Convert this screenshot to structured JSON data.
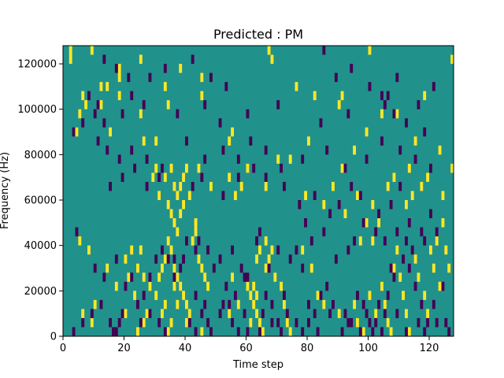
{
  "chart_data": {
    "type": "heatmap",
    "title": "Predicted : PM",
    "xlabel": "Time step",
    "ylabel": "Frequency (Hz)",
    "xlim": [
      0,
      128
    ],
    "ylim": [
      0,
      128000
    ],
    "x_ticks": [
      0,
      20,
      40,
      60,
      80,
      100,
      120
    ],
    "y_ticks": [
      0,
      20000,
      40000,
      60000,
      80000,
      100000,
      120000
    ],
    "x_tick_labels": [
      "0",
      "20",
      "40",
      "60",
      "80",
      "100",
      "120"
    ],
    "y_tick_labels": [
      "0",
      "20000",
      "40000",
      "60000",
      "80000",
      "100000",
      "120000"
    ],
    "background_value": 0,
    "colors": {
      "low": "#440154",
      "mid": "#21918c",
      "high": "#fde725"
    },
    "cell_width_steps": 1,
    "cell_height_hz": 4000,
    "high_cells": [
      [
        2,
        124000
      ],
      [
        2,
        120000
      ],
      [
        9,
        124000
      ],
      [
        25,
        120000
      ],
      [
        67,
        124000
      ],
      [
        68,
        120000
      ],
      [
        100,
        124000
      ],
      [
        127,
        120000
      ],
      [
        18,
        116000
      ],
      [
        18,
        112000
      ],
      [
        14,
        108000
      ],
      [
        18,
        104000
      ],
      [
        25,
        96000
      ],
      [
        12,
        108000
      ],
      [
        34,
        100000
      ],
      [
        38,
        116000
      ],
      [
        45,
        112000
      ],
      [
        45,
        104000
      ],
      [
        33,
        108000
      ],
      [
        6,
        104000
      ],
      [
        76,
        108000
      ],
      [
        82,
        104000
      ],
      [
        90,
        100000
      ],
      [
        91,
        104000
      ],
      [
        104,
        96000
      ],
      [
        109,
        96000
      ],
      [
        118,
        104000
      ],
      [
        4,
        88000
      ],
      [
        5,
        96000
      ],
      [
        7,
        100000
      ],
      [
        12,
        100000
      ],
      [
        15,
        88000
      ],
      [
        26,
        84000
      ],
      [
        30,
        84000
      ],
      [
        54,
        84000
      ],
      [
        55,
        88000
      ],
      [
        74,
        76000
      ],
      [
        80,
        84000
      ],
      [
        91,
        72000
      ],
      [
        95,
        80000
      ],
      [
        99,
        88000
      ],
      [
        108,
        68000
      ],
      [
        113,
        72000
      ],
      [
        115,
        84000
      ],
      [
        123,
        80000
      ],
      [
        127,
        72000
      ],
      [
        29,
        68000
      ],
      [
        30,
        72000
      ],
      [
        31,
        60000
      ],
      [
        33,
        68000
      ],
      [
        35,
        72000
      ],
      [
        36,
        64000
      ],
      [
        37,
        60000
      ],
      [
        38,
        64000
      ],
      [
        39,
        68000
      ],
      [
        40,
        72000
      ],
      [
        34,
        56000
      ],
      [
        35,
        52000
      ],
      [
        36,
        48000
      ],
      [
        37,
        44000
      ],
      [
        38,
        52000
      ],
      [
        39,
        56000
      ],
      [
        41,
        60000
      ],
      [
        43,
        48000
      ],
      [
        44,
        72000
      ],
      [
        48,
        64000
      ],
      [
        54,
        68000
      ],
      [
        56,
        60000
      ],
      [
        58,
        64000
      ],
      [
        60,
        72000
      ],
      [
        66,
        64000
      ],
      [
        70,
        76000
      ],
      [
        79,
        60000
      ],
      [
        85,
        56000
      ],
      [
        88,
        64000
      ],
      [
        92,
        52000
      ],
      [
        96,
        60000
      ],
      [
        101,
        56000
      ],
      [
        103,
        48000
      ],
      [
        106,
        64000
      ],
      [
        112,
        56000
      ],
      [
        114,
        60000
      ],
      [
        117,
        64000
      ],
      [
        119,
        68000
      ],
      [
        124,
        60000
      ],
      [
        5,
        40000
      ],
      [
        8,
        36000
      ],
      [
        14,
        28000
      ],
      [
        20,
        32000
      ],
      [
        22,
        36000
      ],
      [
        24,
        28000
      ],
      [
        25,
        36000
      ],
      [
        26,
        24000
      ],
      [
        28,
        20000
      ],
      [
        30,
        16000
      ],
      [
        31,
        24000
      ],
      [
        32,
        28000
      ],
      [
        33,
        32000
      ],
      [
        34,
        40000
      ],
      [
        35,
        36000
      ],
      [
        36,
        28000
      ],
      [
        37,
        24000
      ],
      [
        38,
        20000
      ],
      [
        39,
        16000
      ],
      [
        40,
        12000
      ],
      [
        41,
        8000
      ],
      [
        42,
        40000
      ],
      [
        43,
        44000
      ],
      [
        44,
        32000
      ],
      [
        45,
        28000
      ],
      [
        46,
        24000
      ],
      [
        47,
        20000
      ],
      [
        33,
        12000
      ],
      [
        32,
        8000
      ],
      [
        35,
        4000
      ],
      [
        34,
        0
      ],
      [
        36,
        20000
      ],
      [
        37,
        12000
      ],
      [
        40,
        4000
      ],
      [
        60,
        20000
      ],
      [
        61,
        16000
      ],
      [
        62,
        12000
      ],
      [
        63,
        8000
      ],
      [
        64,
        4000
      ],
      [
        65,
        0
      ],
      [
        61,
        4000
      ],
      [
        63,
        16000
      ],
      [
        62,
        20000
      ],
      [
        66,
        28000
      ],
      [
        67,
        32000
      ],
      [
        68,
        36000
      ],
      [
        69,
        24000
      ],
      [
        71,
        20000
      ],
      [
        72,
        12000
      ],
      [
        73,
        4000
      ],
      [
        74,
        0
      ],
      [
        78,
        36000
      ],
      [
        81,
        28000
      ],
      [
        83,
        16000
      ],
      [
        85,
        12000
      ],
      [
        90,
        8000
      ],
      [
        95,
        12000
      ],
      [
        96,
        4000
      ],
      [
        98,
        0
      ],
      [
        100,
        16000
      ],
      [
        102,
        8000
      ],
      [
        104,
        20000
      ],
      [
        105,
        12000
      ],
      [
        106,
        4000
      ],
      [
        107,
        0
      ],
      [
        108,
        28000
      ],
      [
        109,
        36000
      ],
      [
        110,
        24000
      ],
      [
        111,
        16000
      ],
      [
        112,
        8000
      ],
      [
        113,
        0
      ],
      [
        115,
        32000
      ],
      [
        116,
        24000
      ],
      [
        118,
        16000
      ],
      [
        119,
        8000
      ],
      [
        121,
        28000
      ],
      [
        123,
        20000
      ],
      [
        125,
        36000
      ],
      [
        126,
        28000
      ],
      [
        24,
        0
      ],
      [
        26,
        4000
      ],
      [
        27,
        8000
      ],
      [
        23,
        16000
      ],
      [
        21,
        24000
      ],
      [
        17,
        20000
      ],
      [
        10,
        12000
      ],
      [
        9,
        4000
      ],
      [
        6,
        8000
      ],
      [
        20,
        8000
      ],
      [
        45,
        0
      ],
      [
        54,
        8000
      ],
      [
        57,
        12000
      ],
      [
        55,
        24000
      ],
      [
        63,
        32000
      ],
      [
        64,
        36000
      ],
      [
        66,
        40000
      ],
      [
        97,
        40000
      ],
      [
        99,
        48000
      ],
      [
        101,
        40000
      ],
      [
        120,
        36000
      ],
      [
        122,
        40000
      ],
      [
        124,
        48000
      ]
    ],
    "low_cells": [
      [
        13,
        120000
      ],
      [
        17,
        116000
      ],
      [
        21,
        112000
      ],
      [
        28,
        112000
      ],
      [
        33,
        116000
      ],
      [
        42,
        120000
      ],
      [
        48,
        112000
      ],
      [
        53,
        108000
      ],
      [
        85,
        124000
      ],
      [
        89,
        112000
      ],
      [
        94,
        116000
      ],
      [
        100,
        108000
      ],
      [
        106,
        104000
      ],
      [
        109,
        112000
      ],
      [
        116,
        100000
      ],
      [
        121,
        108000
      ],
      [
        8,
        104000
      ],
      [
        11,
        100000
      ],
      [
        10,
        96000
      ],
      [
        6,
        92000
      ],
      [
        3,
        88000
      ],
      [
        13,
        92000
      ],
      [
        19,
        96000
      ],
      [
        22,
        104000
      ],
      [
        26,
        100000
      ],
      [
        37,
        96000
      ],
      [
        46,
        100000
      ],
      [
        51,
        92000
      ],
      [
        60,
        96000
      ],
      [
        70,
        100000
      ],
      [
        84,
        92000
      ],
      [
        93,
        96000
      ],
      [
        104,
        104000
      ],
      [
        105,
        100000
      ],
      [
        108,
        96000
      ],
      [
        112,
        92000
      ],
      [
        118,
        88000
      ],
      [
        11,
        84000
      ],
      [
        14,
        80000
      ],
      [
        18,
        76000
      ],
      [
        22,
        80000
      ],
      [
        27,
        76000
      ],
      [
        32,
        72000
      ],
      [
        40,
        84000
      ],
      [
        46,
        76000
      ],
      [
        52,
        80000
      ],
      [
        57,
        76000
      ],
      [
        61,
        84000
      ],
      [
        66,
        80000
      ],
      [
        71,
        72000
      ],
      [
        78,
        76000
      ],
      [
        86,
        80000
      ],
      [
        92,
        72000
      ],
      [
        99,
        76000
      ],
      [
        104,
        84000
      ],
      [
        110,
        80000
      ],
      [
        115,
        76000
      ],
      [
        120,
        72000
      ],
      [
        15,
        64000
      ],
      [
        19,
        68000
      ],
      [
        23,
        72000
      ],
      [
        27,
        64000
      ],
      [
        31,
        68000
      ],
      [
        42,
        64000
      ],
      [
        45,
        68000
      ],
      [
        52,
        60000
      ],
      [
        57,
        68000
      ],
      [
        62,
        72000
      ],
      [
        66,
        68000
      ],
      [
        72,
        64000
      ],
      [
        77,
        56000
      ],
      [
        82,
        60000
      ],
      [
        87,
        52000
      ],
      [
        90,
        56000
      ],
      [
        94,
        64000
      ],
      [
        97,
        60000
      ],
      [
        103,
        52000
      ],
      [
        107,
        56000
      ],
      [
        110,
        64000
      ],
      [
        113,
        48000
      ],
      [
        117,
        44000
      ],
      [
        120,
        52000
      ],
      [
        4,
        44000
      ],
      [
        10,
        28000
      ],
      [
        13,
        24000
      ],
      [
        17,
        32000
      ],
      [
        20,
        20000
      ],
      [
        22,
        24000
      ],
      [
        24,
        12000
      ],
      [
        26,
        16000
      ],
      [
        28,
        24000
      ],
      [
        30,
        32000
      ],
      [
        32,
        36000
      ],
      [
        34,
        32000
      ],
      [
        36,
        24000
      ],
      [
        38,
        28000
      ],
      [
        39,
        32000
      ],
      [
        43,
        16000
      ],
      [
        45,
        8000
      ],
      [
        46,
        12000
      ],
      [
        47,
        36000
      ],
      [
        49,
        28000
      ],
      [
        51,
        32000
      ],
      [
        53,
        20000
      ],
      [
        54,
        12000
      ],
      [
        56,
        16000
      ],
      [
        58,
        28000
      ],
      [
        60,
        24000
      ],
      [
        63,
        40000
      ],
      [
        64,
        44000
      ],
      [
        66,
        16000
      ],
      [
        68,
        12000
      ],
      [
        70,
        4000
      ],
      [
        72,
        16000
      ],
      [
        74,
        32000
      ],
      [
        76,
        36000
      ],
      [
        78,
        28000
      ],
      [
        80,
        12000
      ],
      [
        82,
        8000
      ],
      [
        84,
        16000
      ],
      [
        86,
        20000
      ],
      [
        88,
        12000
      ],
      [
        92,
        8000
      ],
      [
        94,
        4000
      ],
      [
        96,
        16000
      ],
      [
        98,
        12000
      ],
      [
        99,
        8000
      ],
      [
        100,
        4000
      ],
      [
        101,
        0
      ],
      [
        103,
        12000
      ],
      [
        105,
        8000
      ],
      [
        106,
        16000
      ],
      [
        107,
        28000
      ],
      [
        108,
        24000
      ],
      [
        111,
        32000
      ],
      [
        113,
        28000
      ],
      [
        115,
        20000
      ],
      [
        117,
        12000
      ],
      [
        119,
        4000
      ],
      [
        121,
        12000
      ],
      [
        124,
        20000
      ],
      [
        125,
        4000
      ],
      [
        3,
        0
      ],
      [
        6,
        4000
      ],
      [
        9,
        8000
      ],
      [
        12,
        12000
      ],
      [
        15,
        4000
      ],
      [
        16,
        0
      ],
      [
        17,
        0
      ],
      [
        18,
        4000
      ],
      [
        19,
        8000
      ],
      [
        25,
        4000
      ],
      [
        28,
        8000
      ],
      [
        31,
        4000
      ],
      [
        33,
        0
      ],
      [
        41,
        4000
      ],
      [
        43,
        0
      ],
      [
        47,
        4000
      ],
      [
        48,
        0
      ],
      [
        51,
        8000
      ],
      [
        52,
        12000
      ],
      [
        55,
        4000
      ],
      [
        57,
        0
      ],
      [
        59,
        8000
      ],
      [
        60,
        0
      ],
      [
        64,
        0
      ],
      [
        65,
        8000
      ],
      [
        68,
        4000
      ],
      [
        71,
        0
      ],
      [
        73,
        8000
      ],
      [
        76,
        4000
      ],
      [
        78,
        0
      ],
      [
        80,
        4000
      ],
      [
        83,
        0
      ],
      [
        87,
        8000
      ],
      [
        91,
        0
      ],
      [
        93,
        4000
      ],
      [
        97,
        0
      ],
      [
        102,
        4000
      ],
      [
        104,
        0
      ],
      [
        109,
        8000
      ],
      [
        112,
        0
      ],
      [
        116,
        4000
      ],
      [
        118,
        0
      ],
      [
        122,
        4000
      ],
      [
        126,
        0
      ],
      [
        36,
        32000
      ],
      [
        40,
        40000
      ],
      [
        43,
        36000
      ],
      [
        44,
        40000
      ],
      [
        55,
        36000
      ],
      [
        59,
        24000
      ],
      [
        67,
        28000
      ],
      [
        70,
        36000
      ],
      [
        79,
        48000
      ],
      [
        81,
        40000
      ],
      [
        85,
        44000
      ],
      [
        89,
        32000
      ],
      [
        93,
        36000
      ],
      [
        95,
        40000
      ],
      [
        98,
        48000
      ],
      [
        102,
        44000
      ],
      [
        105,
        40000
      ],
      [
        109,
        44000
      ],
      [
        112,
        40000
      ],
      [
        114,
        36000
      ],
      [
        118,
        40000
      ],
      [
        122,
        44000
      ]
    ]
  }
}
